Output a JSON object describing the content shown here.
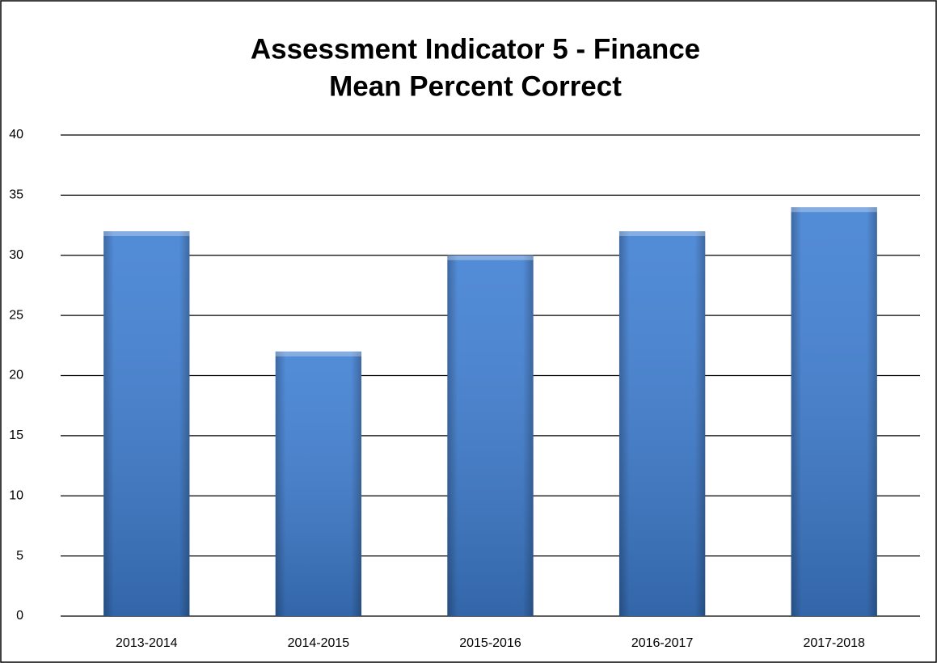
{
  "chart_data": {
    "type": "bar",
    "title": [
      "Assessment Indicator 5 - Finance",
      "Mean Percent Correct"
    ],
    "categories": [
      "2013-2014",
      "2014-2015",
      "2015-2016",
      "2016-2017",
      "2017-2018"
    ],
    "values": [
      32,
      22,
      30,
      32,
      34
    ],
    "color": "#3f7fd3",
    "ylim": [
      0,
      40
    ],
    "yticks": [
      0,
      5,
      10,
      15,
      20,
      25,
      30,
      35,
      40
    ],
    "grid": true
  }
}
